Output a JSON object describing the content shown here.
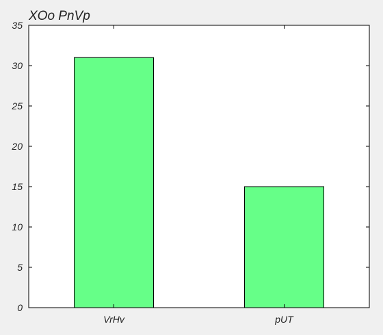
{
  "chart_data": {
    "type": "bar",
    "title": "XOo PnVp",
    "categories": [
      "VrHv",
      "pUT"
    ],
    "values": [
      31,
      15
    ],
    "xlabel": "",
    "ylabel": "",
    "ylim": [
      0,
      35
    ],
    "yticks": [
      0,
      5,
      10,
      15,
      20,
      25,
      30,
      35
    ],
    "grid": false,
    "bar_color": "#66ff88",
    "background": "#f0f0f0",
    "plot_background": "#ffffff"
  }
}
